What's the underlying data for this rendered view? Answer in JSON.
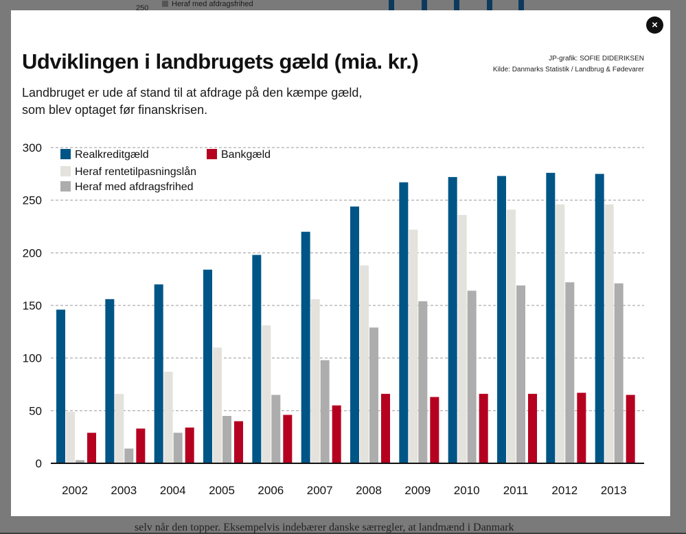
{
  "background": {
    "top_legend_label": "Heraf med afdragsfrihed",
    "top_tick_label": "250",
    "bottom_text": "selv når den topper. Eksempelvis indebærer danske særregler, at landmænd i Danmark"
  },
  "modal": {
    "close_label": "×"
  },
  "chart_data": {
    "type": "bar",
    "title": "Udviklingen i landbrugets gæld (mia. kr.)",
    "subtitle_lines": [
      "Landbruget er ude af stand til at afdrage på den kæmpe gæld,",
      "som blev optaget før finanskrisen."
    ],
    "credit_lines": [
      "JP-grafik: SOFIE DIDERIKSEN",
      "Kilde: Danmarks Statistik / Landbrug & Fødevarer"
    ],
    "categories": [
      "2002",
      "2003",
      "2004",
      "2005",
      "2006",
      "2007",
      "2008",
      "2009",
      "2010",
      "2011",
      "2012",
      "2013"
    ],
    "series": [
      {
        "name": "Realkreditgæld",
        "color": "#005587",
        "values": [
          146,
          156,
          170,
          184,
          198,
          220,
          244,
          267,
          272,
          273,
          276,
          275
        ]
      },
      {
        "name": "Heraf rentetilpasningslån",
        "color": "#e4e2dc",
        "values": [
          49,
          66,
          87,
          110,
          131,
          156,
          188,
          222,
          236,
          241,
          246,
          246
        ]
      },
      {
        "name": "Heraf med afdragsfrihed",
        "color": "#adadad",
        "values": [
          3,
          14,
          29,
          45,
          65,
          98,
          129,
          154,
          164,
          169,
          172,
          171
        ]
      },
      {
        "name": "Bankgæld",
        "color": "#b5001f",
        "values": [
          29,
          33,
          34,
          40,
          46,
          55,
          66,
          63,
          66,
          66,
          67,
          65
        ]
      }
    ],
    "ylim": [
      0,
      300
    ],
    "yticks": [
      0,
      50,
      100,
      150,
      200,
      250,
      300
    ],
    "grid": true,
    "legend_position": "top-left"
  }
}
